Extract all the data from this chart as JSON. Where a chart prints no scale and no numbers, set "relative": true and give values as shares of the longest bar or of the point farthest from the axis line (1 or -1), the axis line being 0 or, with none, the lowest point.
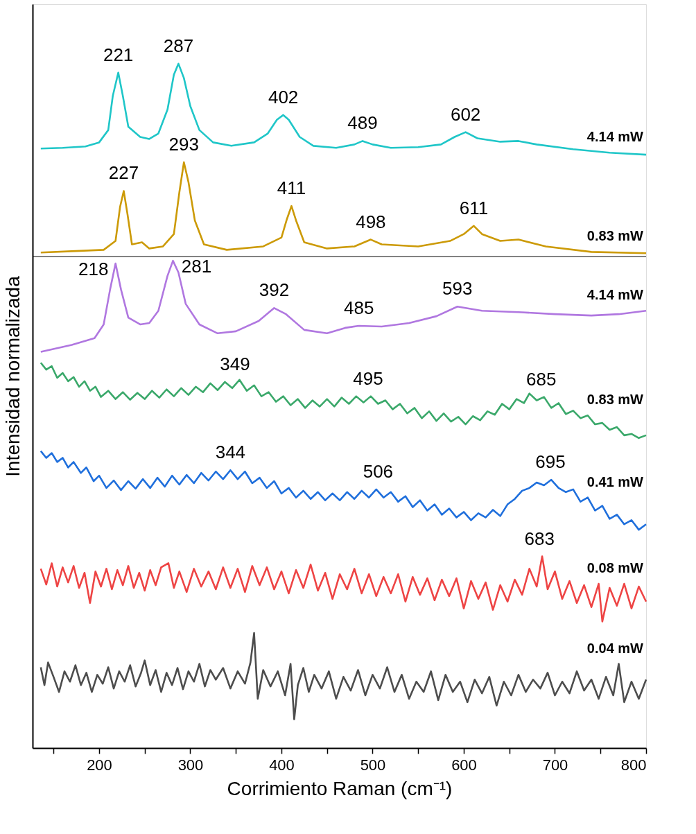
{
  "chart_data": {
    "type": "line",
    "relative": true,
    "xlabel": "Corrimiento Raman (cm⁻¹)",
    "ylabel": "Intensidad normalizada",
    "xlim": [
      127,
      800
    ],
    "xticks": [
      {
        "value": 150,
        "label": null
      },
      200,
      {
        "value": 250,
        "label": null
      },
      300,
      {
        "value": 350,
        "label": null
      },
      400,
      {
        "value": 450,
        "label": null
      },
      500,
      {
        "value": 550,
        "label": null
      },
      600,
      {
        "value": 650,
        "label": null
      },
      700,
      {
        "value": 750,
        "label": null
      },
      800
    ],
    "ref_lines": [
      {
        "axis": "y",
        "value": 0.718,
        "color": "#000000"
      }
    ],
    "series": [
      {
        "name": "4.14 mW",
        "color": "#1fc6c8",
        "x": [
          136,
          160,
          185,
          200,
          210,
          215,
          221,
          226,
          232,
          245,
          255,
          265,
          275,
          282,
          287,
          293,
          300,
          310,
          325,
          345,
          370,
          385,
          395,
          402,
          408,
          420,
          435,
          460,
          480,
          489,
          500,
          520,
          550,
          575,
          590,
          602,
          615,
          640,
          660,
          680,
          720,
          760,
          800
        ],
        "values": [
          0.876,
          0.877,
          0.879,
          0.885,
          0.903,
          0.953,
          0.987,
          0.953,
          0.908,
          0.893,
          0.89,
          0.898,
          0.933,
          0.984,
          1.0,
          0.979,
          0.938,
          0.903,
          0.885,
          0.88,
          0.885,
          0.898,
          0.918,
          0.925,
          0.918,
          0.893,
          0.88,
          0.877,
          0.882,
          0.887,
          0.882,
          0.877,
          0.878,
          0.882,
          0.893,
          0.9,
          0.891,
          0.886,
          0.887,
          0.882,
          0.875,
          0.87,
          0.867
        ]
      },
      {
        "name": "0.83 mW",
        "color": "#cc9a06",
        "x": [
          136,
          170,
          205,
          218,
          223,
          227,
          231,
          236,
          247,
          255,
          270,
          282,
          288,
          293,
          298,
          305,
          315,
          340,
          380,
          400,
          406,
          411,
          416,
          425,
          450,
          480,
          498,
          510,
          550,
          585,
          600,
          611,
          620,
          640,
          660,
          690,
          740,
          800
        ],
        "values": [
          0.724,
          0.726,
          0.728,
          0.741,
          0.791,
          0.814,
          0.781,
          0.736,
          0.739,
          0.73,
          0.733,
          0.751,
          0.812,
          0.856,
          0.827,
          0.771,
          0.736,
          0.728,
          0.733,
          0.746,
          0.773,
          0.792,
          0.771,
          0.739,
          0.73,
          0.733,
          0.743,
          0.736,
          0.733,
          0.741,
          0.751,
          0.763,
          0.751,
          0.741,
          0.743,
          0.733,
          0.725,
          0.723
        ]
      },
      {
        "name": "4.14 mW",
        "color": "#b077e0",
        "x": [
          136,
          170,
          195,
          205,
          212,
          218,
          224,
          232,
          245,
          255,
          265,
          275,
          281,
          287,
          295,
          310,
          330,
          350,
          375,
          392,
          405,
          425,
          450,
          470,
          485,
          510,
          540,
          570,
          593,
          620,
          660,
          700,
          740,
          770,
          800
        ],
        "values": [
          0.579,
          0.589,
          0.599,
          0.619,
          0.67,
          0.708,
          0.67,
          0.629,
          0.619,
          0.621,
          0.639,
          0.69,
          0.712,
          0.695,
          0.649,
          0.619,
          0.606,
          0.609,
          0.624,
          0.643,
          0.634,
          0.611,
          0.606,
          0.614,
          0.617,
          0.616,
          0.621,
          0.631,
          0.645,
          0.639,
          0.637,
          0.634,
          0.632,
          0.634,
          0.639
        ]
      },
      {
        "name": "0.83 mW",
        "color": "#3aa86a",
        "x": [
          136,
          142,
          148,
          154,
          160,
          166,
          172,
          178,
          184,
          190,
          196,
          202,
          210,
          218,
          226,
          234,
          242,
          250,
          258,
          266,
          274,
          282,
          290,
          298,
          306,
          314,
          322,
          330,
          338,
          346,
          354,
          362,
          370,
          378,
          386,
          394,
          402,
          410,
          418,
          426,
          434,
          442,
          450,
          458,
          466,
          474,
          482,
          490,
          498,
          506,
          514,
          522,
          530,
          538,
          546,
          554,
          562,
          570,
          578,
          586,
          594,
          602,
          610,
          618,
          626,
          634,
          642,
          650,
          658,
          666,
          672,
          680,
          688,
          696,
          704,
          712,
          720,
          728,
          736,
          744,
          752,
          760,
          768,
          776,
          784,
          792,
          800
        ],
        "values": [
          0.563,
          0.553,
          0.558,
          0.541,
          0.548,
          0.536,
          0.542,
          0.528,
          0.536,
          0.522,
          0.528,
          0.513,
          0.522,
          0.51,
          0.52,
          0.509,
          0.519,
          0.51,
          0.522,
          0.512,
          0.524,
          0.514,
          0.526,
          0.516,
          0.528,
          0.52,
          0.533,
          0.523,
          0.535,
          0.526,
          0.538,
          0.522,
          0.53,
          0.514,
          0.52,
          0.506,
          0.514,
          0.501,
          0.51,
          0.497,
          0.508,
          0.499,
          0.51,
          0.499,
          0.512,
          0.503,
          0.514,
          0.505,
          0.514,
          0.503,
          0.508,
          0.495,
          0.503,
          0.489,
          0.497,
          0.482,
          0.492,
          0.478,
          0.489,
          0.477,
          0.484,
          0.473,
          0.485,
          0.479,
          0.492,
          0.487,
          0.503,
          0.495,
          0.51,
          0.504,
          0.518,
          0.508,
          0.513,
          0.497,
          0.504,
          0.488,
          0.493,
          0.482,
          0.486,
          0.473,
          0.475,
          0.465,
          0.469,
          0.457,
          0.459,
          0.453,
          0.457
        ]
      },
      {
        "name": "0.41 mW",
        "color": "#1f6fdc",
        "x": [
          136,
          142,
          148,
          154,
          160,
          166,
          172,
          180,
          186,
          194,
          200,
          208,
          216,
          224,
          232,
          240,
          248,
          256,
          264,
          272,
          280,
          288,
          296,
          304,
          312,
          320,
          328,
          336,
          344,
          352,
          360,
          368,
          376,
          384,
          392,
          400,
          408,
          416,
          424,
          432,
          440,
          448,
          456,
          464,
          472,
          480,
          488,
          496,
          504,
          512,
          520,
          528,
          536,
          544,
          552,
          560,
          568,
          576,
          584,
          592,
          600,
          608,
          616,
          624,
          632,
          640,
          648,
          656,
          664,
          672,
          680,
          688,
          696,
          704,
          712,
          720,
          728,
          736,
          744,
          752,
          760,
          768,
          776,
          784,
          792,
          800
        ],
        "values": [
          0.434,
          0.424,
          0.431,
          0.418,
          0.424,
          0.41,
          0.418,
          0.402,
          0.41,
          0.39,
          0.398,
          0.38,
          0.391,
          0.377,
          0.39,
          0.379,
          0.393,
          0.38,
          0.395,
          0.382,
          0.398,
          0.385,
          0.399,
          0.387,
          0.402,
          0.391,
          0.404,
          0.393,
          0.406,
          0.393,
          0.404,
          0.387,
          0.395,
          0.38,
          0.39,
          0.372,
          0.38,
          0.366,
          0.376,
          0.364,
          0.374,
          0.362,
          0.372,
          0.362,
          0.374,
          0.364,
          0.376,
          0.366,
          0.378,
          0.366,
          0.374,
          0.36,
          0.368,
          0.352,
          0.362,
          0.347,
          0.356,
          0.341,
          0.35,
          0.337,
          0.345,
          0.333,
          0.343,
          0.337,
          0.348,
          0.339,
          0.356,
          0.364,
          0.376,
          0.38,
          0.388,
          0.384,
          0.392,
          0.38,
          0.374,
          0.378,
          0.36,
          0.366,
          0.347,
          0.354,
          0.335,
          0.341,
          0.327,
          0.333,
          0.319,
          0.327
        ]
      },
      {
        "name": "0.08 mW",
        "color": "#ee4444",
        "x": [
          136,
          142,
          148,
          154,
          160,
          166,
          172,
          178,
          184,
          190,
          196,
          202,
          208,
          214,
          220,
          226,
          232,
          238,
          244,
          250,
          256,
          262,
          268,
          276,
          282,
          288,
          296,
          304,
          312,
          320,
          328,
          336,
          344,
          352,
          360,
          368,
          376,
          384,
          392,
          400,
          408,
          416,
          424,
          432,
          440,
          448,
          456,
          464,
          472,
          480,
          488,
          496,
          504,
          512,
          520,
          528,
          536,
          544,
          552,
          560,
          568,
          576,
          584,
          592,
          600,
          608,
          616,
          624,
          632,
          640,
          648,
          656,
          664,
          672,
          680,
          686,
          692,
          700,
          708,
          716,
          724,
          732,
          740,
          748,
          752,
          760,
          768,
          776,
          784,
          792,
          800
        ],
        "values": [
          0.262,
          0.239,
          0.27,
          0.236,
          0.264,
          0.242,
          0.266,
          0.234,
          0.256,
          0.212,
          0.258,
          0.236,
          0.262,
          0.232,
          0.26,
          0.238,
          0.266,
          0.234,
          0.256,
          0.23,
          0.26,
          0.238,
          0.264,
          0.27,
          0.234,
          0.258,
          0.228,
          0.262,
          0.236,
          0.258,
          0.232,
          0.264,
          0.234,
          0.262,
          0.228,
          0.266,
          0.238,
          0.264,
          0.232,
          0.258,
          0.226,
          0.26,
          0.234,
          0.268,
          0.23,
          0.256,
          0.218,
          0.254,
          0.232,
          0.262,
          0.226,
          0.254,
          0.222,
          0.25,
          0.226,
          0.254,
          0.214,
          0.25,
          0.224,
          0.248,
          0.216,
          0.246,
          0.222,
          0.248,
          0.204,
          0.244,
          0.218,
          0.242,
          0.202,
          0.238,
          0.214,
          0.246,
          0.224,
          0.262,
          0.236,
          0.28,
          0.232,
          0.258,
          0.218,
          0.244,
          0.212,
          0.238,
          0.206,
          0.24,
          0.185,
          0.234,
          0.208,
          0.24,
          0.204,
          0.236,
          0.214
        ]
      },
      {
        "name": "0.04 mW",
        "color": "#4d4d4d",
        "x": [
          136,
          140,
          144,
          150,
          156,
          162,
          168,
          174,
          180,
          186,
          192,
          198,
          204,
          210,
          216,
          222,
          228,
          234,
          240,
          246,
          250,
          256,
          262,
          268,
          274,
          280,
          286,
          292,
          298,
          304,
          310,
          316,
          322,
          328,
          336,
          344,
          352,
          360,
          366,
          370,
          374,
          380,
          388,
          396,
          404,
          410,
          414,
          418,
          424,
          430,
          436,
          444,
          452,
          460,
          468,
          476,
          484,
          492,
          500,
          508,
          516,
          524,
          532,
          540,
          548,
          556,
          564,
          572,
          580,
          588,
          596,
          604,
          612,
          620,
          628,
          636,
          644,
          652,
          660,
          668,
          676,
          684,
          692,
          700,
          708,
          716,
          724,
          732,
          740,
          748,
          756,
          764,
          770,
          776,
          784,
          792,
          800
        ],
        "values": [
          0.118,
          0.092,
          0.125,
          0.104,
          0.082,
          0.112,
          0.097,
          0.121,
          0.092,
          0.11,
          0.082,
          0.107,
          0.094,
          0.118,
          0.087,
          0.112,
          0.097,
          0.121,
          0.09,
          0.11,
          0.128,
          0.092,
          0.114,
          0.082,
          0.11,
          0.092,
          0.117,
          0.086,
          0.112,
          0.097,
          0.123,
          0.09,
          0.114,
          0.1,
          0.117,
          0.087,
          0.112,
          0.094,
          0.125,
          0.168,
          0.072,
          0.114,
          0.09,
          0.112,
          0.077,
          0.123,
          0.042,
          0.092,
          0.117,
          0.082,
          0.107,
          0.087,
          0.112,
          0.072,
          0.104,
          0.084,
          0.114,
          0.077,
          0.107,
          0.087,
          0.118,
          0.082,
          0.107,
          0.072,
          0.097,
          0.082,
          0.112,
          0.07,
          0.107,
          0.082,
          0.097,
          0.067,
          0.1,
          0.08,
          0.104,
          0.062,
          0.097,
          0.077,
          0.107,
          0.082,
          0.1,
          0.087,
          0.11,
          0.077,
          0.097,
          0.08,
          0.112,
          0.084,
          0.1,
          0.072,
          0.104,
          0.077,
          0.123,
          0.067,
          0.097,
          0.072,
          0.1
        ]
      }
    ],
    "annotations": [
      {
        "text": "221",
        "x": 221,
        "y": 0.987
      },
      {
        "text": "287",
        "x": 287,
        "y": 1.0
      },
      {
        "text": "402",
        "x": 402,
        "y": 0.925
      },
      {
        "text": "489",
        "x": 489,
        "y": 0.887
      },
      {
        "text": "602",
        "x": 602,
        "y": 0.9
      },
      {
        "text": "227",
        "x": 227,
        "y": 0.814
      },
      {
        "text": "293",
        "x": 293,
        "y": 0.856
      },
      {
        "text": "411",
        "x": 411,
        "y": 0.792
      },
      {
        "text": "498",
        "x": 498,
        "y": 0.743
      },
      {
        "text": "611",
        "x": 611,
        "y": 0.763
      },
      {
        "text": "218",
        "x": 218,
        "y": 0.708
      },
      {
        "text": "281",
        "x": 281,
        "y": 0.712
      },
      {
        "text": "392",
        "x": 392,
        "y": 0.643
      },
      {
        "text": "485",
        "x": 485,
        "y": 0.617
      },
      {
        "text": "593",
        "x": 593,
        "y": 0.645
      },
      {
        "text": "349",
        "x": 349,
        "y": 0.535
      },
      {
        "text": "495",
        "x": 495,
        "y": 0.514
      },
      {
        "text": "685",
        "x": 685,
        "y": 0.513
      },
      {
        "text": "344",
        "x": 344,
        "y": 0.406
      },
      {
        "text": "506",
        "x": 506,
        "y": 0.378
      },
      {
        "text": "695",
        "x": 695,
        "y": 0.392
      },
      {
        "text": "683",
        "x": 683,
        "y": 0.28
      }
    ]
  }
}
